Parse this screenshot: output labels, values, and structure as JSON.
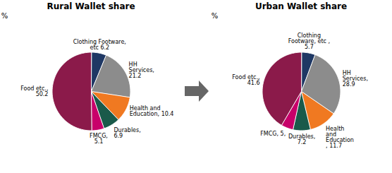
{
  "chart_data": [
    {
      "type": "pie",
      "title": "Rural Wallet share",
      "categories": [
        "Clothing Footware,\netc 6.2",
        "HH\nServices,\n21.2",
        "Health and\nEducation, 10.4",
        "Durables,\n6.9",
        "FMCG,\n5.1",
        "Food etc.,\n50.2"
      ],
      "values": [
        6.2,
        21.2,
        10.4,
        6.9,
        5.1,
        50.2
      ],
      "colors": [
        "#1f3864",
        "#8c8c8c",
        "#f07921",
        "#1a5a4a",
        "#c8006a",
        "#8b1a4a"
      ],
      "annotations": [
        "%"
      ]
    },
    {
      "type": "pie",
      "title": "Urban Wallet share",
      "categories": [
        "Clothing\nFootware, etc ,\n5.7",
        "HH\nServices,\n28.9",
        "Health\nand\nEducation\n, 11.7",
        "Durables,\n7.2",
        "FMCG, 5,",
        "Food etc.,\n41.6"
      ],
      "values": [
        5.7,
        28.9,
        11.7,
        7.2,
        5.0,
        41.6
      ],
      "colors": [
        "#1f3864",
        "#8c8c8c",
        "#f07921",
        "#1a5a4a",
        "#c8006a",
        "#8b1a4a"
      ],
      "annotations": [
        "%"
      ]
    }
  ]
}
